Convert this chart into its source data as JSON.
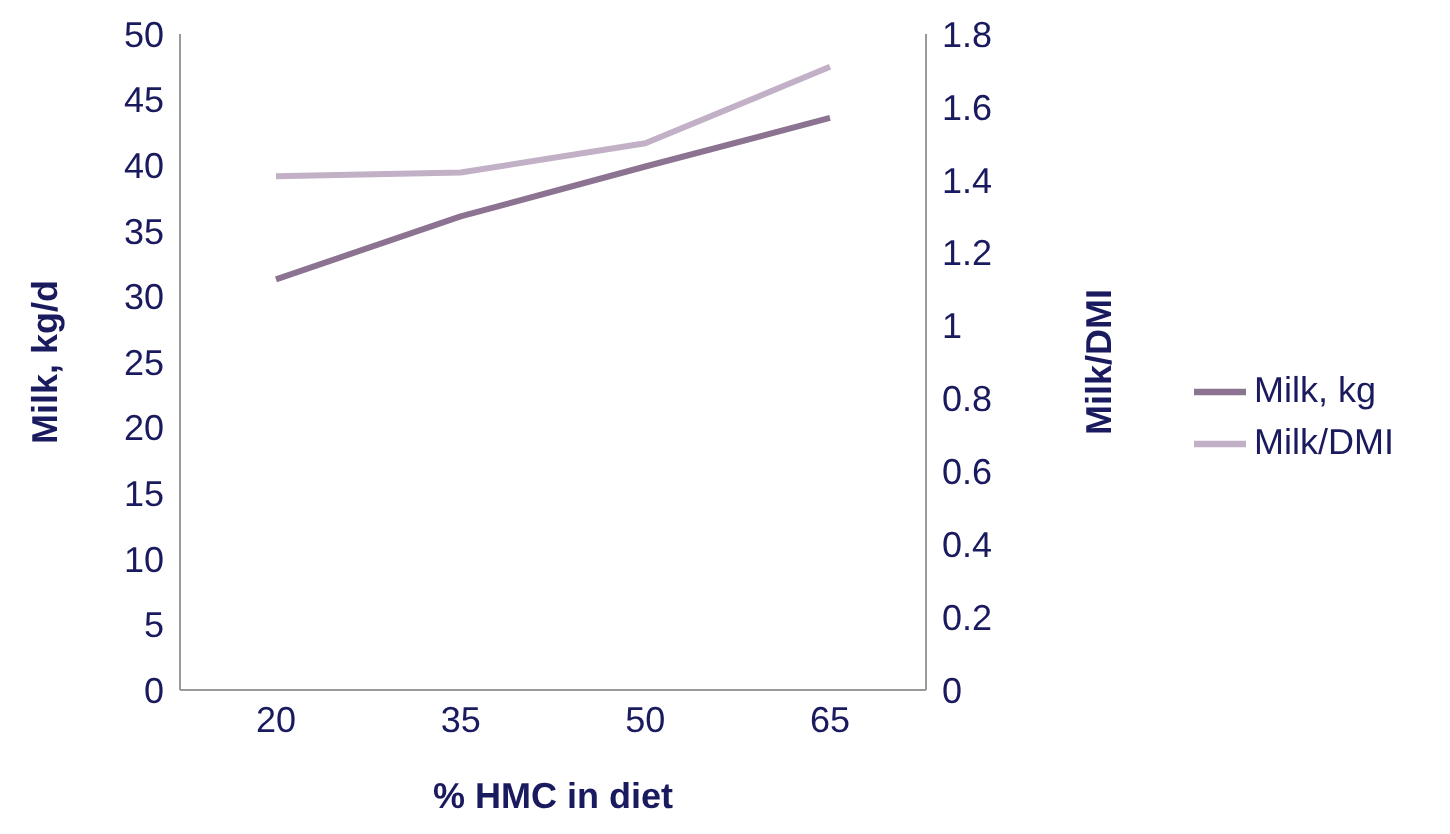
{
  "chart_data": {
    "type": "line",
    "xlabel": "% HMC in diet",
    "ylabel": "Milk, kg/d",
    "y2label": "Milk/DMI",
    "categories": [
      "20",
      "35",
      "50",
      "65"
    ],
    "series": [
      {
        "name": "Milk, kg",
        "color": "#8c7391",
        "values": [
          31.3,
          36.1,
          39.9,
          43.6
        ]
      },
      {
        "name": "Milk/DMI",
        "color": "#c2b0c7",
        "values": [
          1.41,
          1.42,
          1.5,
          1.71
        ],
        "axis": "y2"
      }
    ],
    "ylim": [
      0,
      50
    ],
    "yticks": [
      0,
      5,
      10,
      15,
      20,
      25,
      30,
      35,
      40,
      45,
      50
    ],
    "y2lim": [
      0,
      1.8
    ],
    "y2ticks": [
      0,
      0.2,
      0.4,
      0.6,
      0.8,
      1,
      1.2,
      1.4,
      1.6,
      1.8
    ],
    "grid": false,
    "legend": "right",
    "marker": "none",
    "line_style": "solid"
  }
}
